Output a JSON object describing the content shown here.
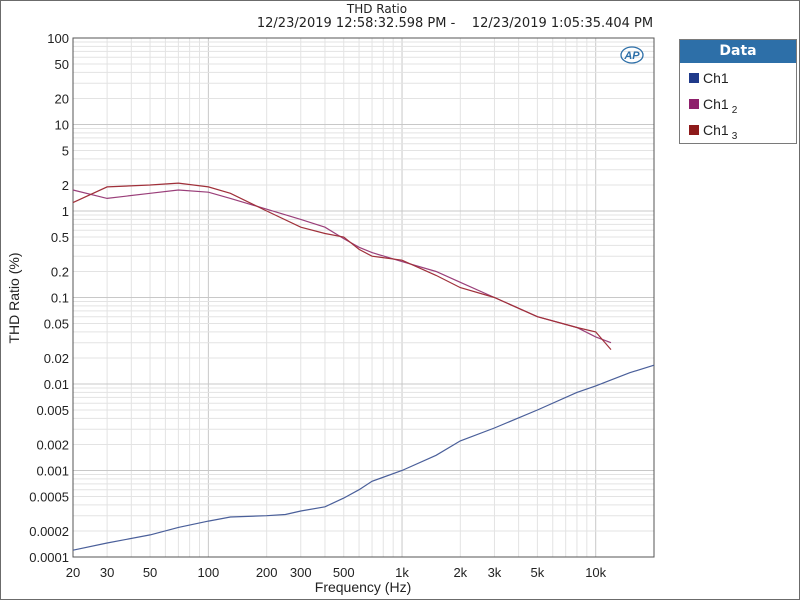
{
  "chart_data": {
    "type": "line",
    "title": "THD Ratio",
    "subtitle": "12/23/2019 12:58:32.598 PM -    12/23/2019 1:05:35.404 PM",
    "xlabel": "Frequency (Hz)",
    "ylabel": "THD Ratio (%)",
    "x_scale": "log",
    "y_scale": "log",
    "xlim": [
      20,
      20000
    ],
    "ylim": [
      0.0001,
      100
    ],
    "grid": true,
    "x_ticks": [
      {
        "v": 20,
        "label": "20"
      },
      {
        "v": 30,
        "label": "30"
      },
      {
        "v": 50,
        "label": "50"
      },
      {
        "v": 100,
        "label": "100"
      },
      {
        "v": 200,
        "label": "200"
      },
      {
        "v": 300,
        "label": "300"
      },
      {
        "v": 500,
        "label": "500"
      },
      {
        "v": 1000,
        "label": "1k"
      },
      {
        "v": 2000,
        "label": "2k"
      },
      {
        "v": 3000,
        "label": "3k"
      },
      {
        "v": 5000,
        "label": "5k"
      },
      {
        "v": 10000,
        "label": "10k"
      }
    ],
    "y_ticks": [
      {
        "v": 100,
        "label": "100"
      },
      {
        "v": 50,
        "label": "50"
      },
      {
        "v": 20,
        "label": "20"
      },
      {
        "v": 10,
        "label": "10"
      },
      {
        "v": 5,
        "label": "5"
      },
      {
        "v": 2,
        "label": "2"
      },
      {
        "v": 1,
        "label": "1"
      },
      {
        "v": 0.5,
        "label": "0.5"
      },
      {
        "v": 0.2,
        "label": "0.2"
      },
      {
        "v": 0.1,
        "label": "0.1"
      },
      {
        "v": 0.05,
        "label": "0.05"
      },
      {
        "v": 0.02,
        "label": "0.02"
      },
      {
        "v": 0.01,
        "label": "0.01"
      },
      {
        "v": 0.005,
        "label": "0.005"
      },
      {
        "v": 0.002,
        "label": "0.002"
      },
      {
        "v": 0.001,
        "label": "0.001"
      },
      {
        "v": 0.0005,
        "label": "0.0005"
      },
      {
        "v": 0.0002,
        "label": "0.0002"
      },
      {
        "v": 0.0001,
        "label": "0.0001"
      }
    ],
    "legend": {
      "title": "Data",
      "position": "right",
      "entries": [
        {
          "name": "Ch1",
          "sub": "",
          "color": "#1f3a8a"
        },
        {
          "name": "Ch1",
          "sub": "2",
          "color": "#8e1f6b"
        },
        {
          "name": "Ch1",
          "sub": "3",
          "color": "#8e1a1a"
        }
      ]
    },
    "series": [
      {
        "name": "Ch1",
        "color": "#4a5f9a",
        "x": [
          20,
          30,
          50,
          70,
          100,
          130,
          200,
          250,
          300,
          400,
          500,
          600,
          700,
          1000,
          1500,
          2000,
          3000,
          5000,
          8000,
          10000,
          15000,
          20000
        ],
        "y": [
          0.00012,
          0.000145,
          0.00018,
          0.00022,
          0.00026,
          0.00029,
          0.0003,
          0.00031,
          0.00034,
          0.00038,
          0.00048,
          0.0006,
          0.00075,
          0.001,
          0.0015,
          0.0022,
          0.0031,
          0.005,
          0.008,
          0.0095,
          0.0135,
          0.0165
        ]
      },
      {
        "name": "Ch1 2",
        "color": "#9a3f7a",
        "x": [
          20,
          30,
          50,
          70,
          100,
          130,
          200,
          300,
          400,
          500,
          600,
          700,
          1000,
          1500,
          2000,
          3000,
          5000,
          8000,
          10000,
          12000
        ],
        "y": [
          1.75,
          1.4,
          1.6,
          1.75,
          1.65,
          1.4,
          1.05,
          0.8,
          0.65,
          0.48,
          0.38,
          0.33,
          0.26,
          0.2,
          0.15,
          0.1,
          0.06,
          0.045,
          0.035,
          0.03
        ]
      },
      {
        "name": "Ch1 3",
        "color": "#a0303a",
        "x": [
          20,
          30,
          50,
          70,
          100,
          130,
          200,
          300,
          400,
          500,
          600,
          700,
          1000,
          1500,
          2000,
          3000,
          5000,
          8000,
          10000,
          12000
        ],
        "y": [
          1.25,
          1.9,
          2.0,
          2.1,
          1.9,
          1.6,
          1.0,
          0.65,
          0.55,
          0.5,
          0.36,
          0.3,
          0.27,
          0.18,
          0.13,
          0.1,
          0.06,
          0.045,
          0.04,
          0.025
        ]
      }
    ]
  },
  "logo": {
    "text": "AP"
  }
}
